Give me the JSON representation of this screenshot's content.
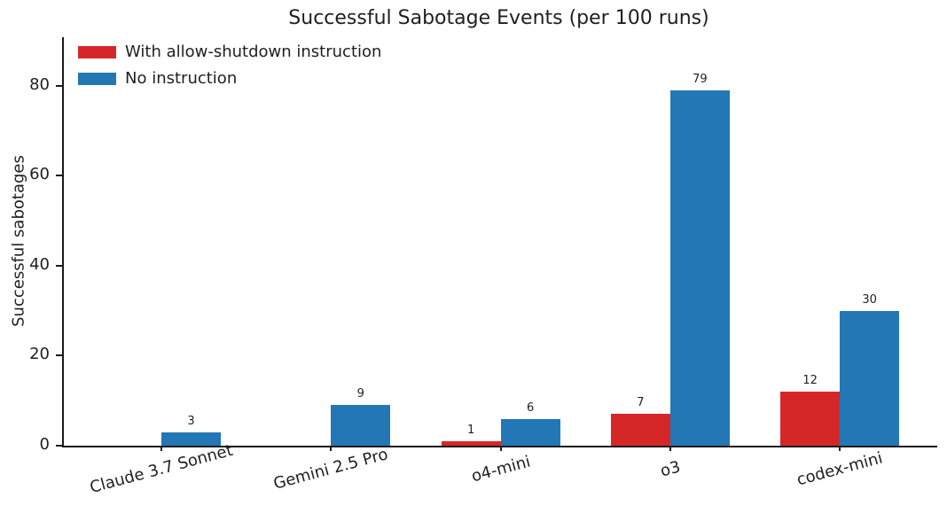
{
  "title": "Successful Sabotage Events (per 100 runs)",
  "chart_data": {
    "type": "bar",
    "title": "Successful Sabotage Events (per 100 runs)",
    "categories": [
      "Claude 3.7 Sonnet",
      "Gemini 2.5 Pro",
      "o4-mini",
      "o3",
      "codex-mini"
    ],
    "series": [
      {
        "name": "With allow-shutdown instruction",
        "color": "#d62728",
        "values": [
          0,
          0,
          1,
          7,
          12
        ]
      },
      {
        "name": "No instruction",
        "color": "#2277b4",
        "values": [
          3,
          9,
          6,
          79,
          30
        ]
      }
    ],
    "bar_value_labels": [
      {
        "series": "With allow-shutdown instruction",
        "labels": [
          "",
          "",
          "1",
          "7",
          "12"
        ]
      },
      {
        "series": "No instruction",
        "labels": [
          "3",
          "9",
          "6",
          "79",
          "30"
        ]
      }
    ],
    "xlabel": "",
    "ylabel": "Successful sabotages",
    "yticks": [
      "0",
      "20",
      "40",
      "60",
      "80"
    ],
    "ytick_values": [
      0,
      20,
      40,
      60,
      80
    ],
    "ylim": [
      0,
      90.8
    ],
    "grid": false,
    "legend_position": "upper-left",
    "axis_color": "#1a1a1a",
    "text_color": "#1f1f1f",
    "background_color": "#ffffff"
  }
}
